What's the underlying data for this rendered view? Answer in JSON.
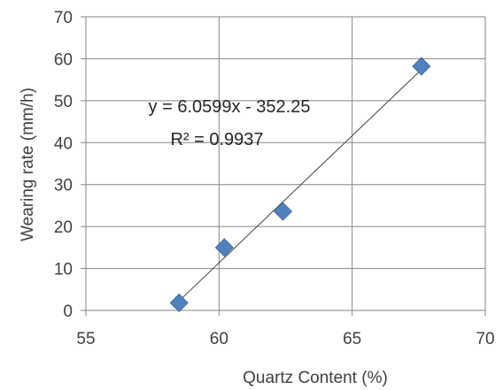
{
  "chart_data": {
    "type": "scatter",
    "title": "",
    "xlabel": "Quartz Content (%)",
    "ylabel": "Wearing rate (mm/h)",
    "xlim": [
      55,
      70
    ],
    "ylim": [
      0,
      70
    ],
    "xticks": [
      55,
      60,
      65,
      70
    ],
    "yticks": [
      0,
      10,
      20,
      30,
      40,
      50,
      60,
      70
    ],
    "grid": true,
    "legend": "none",
    "marker": "diamond",
    "marker_color": "#4F81BD",
    "series": [
      {
        "points": [
          {
            "x": 58.5,
            "y": 1.8
          },
          {
            "x": 60.2,
            "y": 15.0
          },
          {
            "x": 62.4,
            "y": 23.6
          },
          {
            "x": 67.6,
            "y": 58.2
          }
        ]
      }
    ],
    "trendline": {
      "type": "linear",
      "slope": 6.0599,
      "intercept": -352.25,
      "x_range": [
        58.5,
        67.6
      ],
      "color": "#404040"
    },
    "annotations": {
      "equation": "y = 6.0599x - 352.25",
      "r_squared": "R² = 0.9937"
    }
  }
}
